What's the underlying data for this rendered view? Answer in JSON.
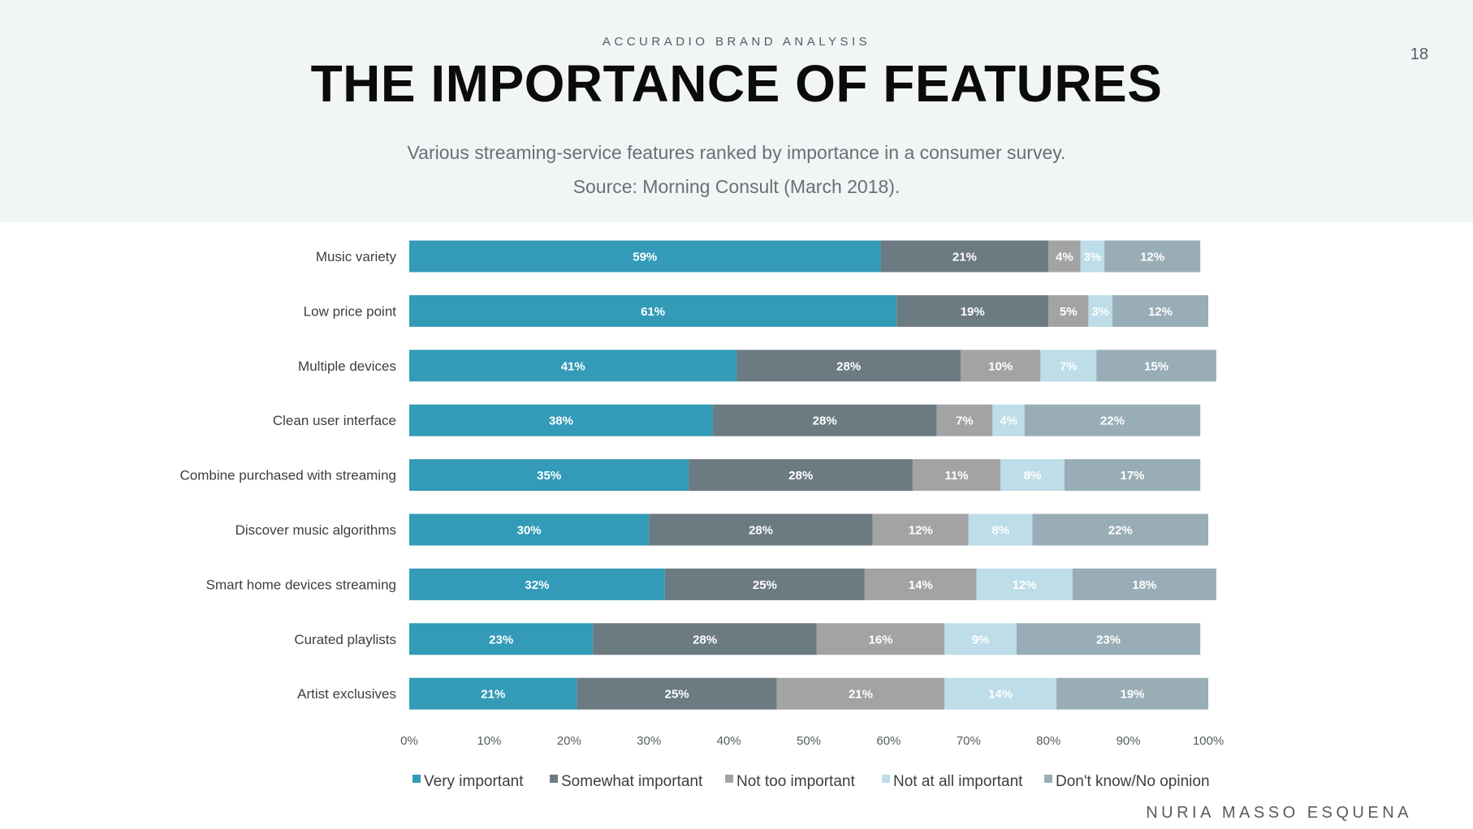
{
  "header": {
    "kicker": "ACCURADIO BRAND ANALYSIS",
    "title": "THE IMPORTANCE OF FEATURES",
    "subtitle": "Various streaming-service features ranked by importance in a consumer survey.",
    "source": "Source: Morning Consult (March 2018).",
    "page_number": "18"
  },
  "footer": {
    "author": "NURIA MASSO ESQUENA"
  },
  "colors": {
    "header_bg": "#f2f5f6",
    "series": [
      "#339bb7",
      "#6c7a82",
      "#a2a3a4",
      "#bddde8",
      "#98adb6"
    ]
  },
  "chart_data": {
    "type": "bar",
    "orientation": "horizontal",
    "stacked": true,
    "categories": [
      "Music variety",
      "Low price point",
      "Multiple devices",
      "Clean user interface",
      "Combine purchased with streaming",
      "Discover music algorithms",
      "Smart home devices streaming",
      "Curated playlists",
      "Artist exclusives"
    ],
    "series": [
      {
        "name": "Very important",
        "values": [
          59,
          61,
          41,
          38,
          35,
          30,
          32,
          23,
          21
        ]
      },
      {
        "name": "Somewhat important",
        "values": [
          21,
          19,
          28,
          28,
          28,
          28,
          25,
          28,
          25
        ]
      },
      {
        "name": "Not too important",
        "values": [
          4,
          5,
          10,
          7,
          11,
          12,
          14,
          16,
          21
        ]
      },
      {
        "name": "Not at all important",
        "values": [
          3,
          3,
          7,
          4,
          8,
          8,
          12,
          9,
          14
        ]
      },
      {
        "name": "Don't know/No opinion",
        "values": [
          12,
          12,
          15,
          22,
          17,
          22,
          18,
          23,
          19
        ]
      }
    ],
    "xlim": [
      0,
      100
    ],
    "xticks": [
      "0%",
      "10%",
      "20%",
      "30%",
      "40%",
      "50%",
      "60%",
      "70%",
      "80%",
      "90%",
      "100%"
    ],
    "legend_position": "bottom",
    "grid": false
  }
}
